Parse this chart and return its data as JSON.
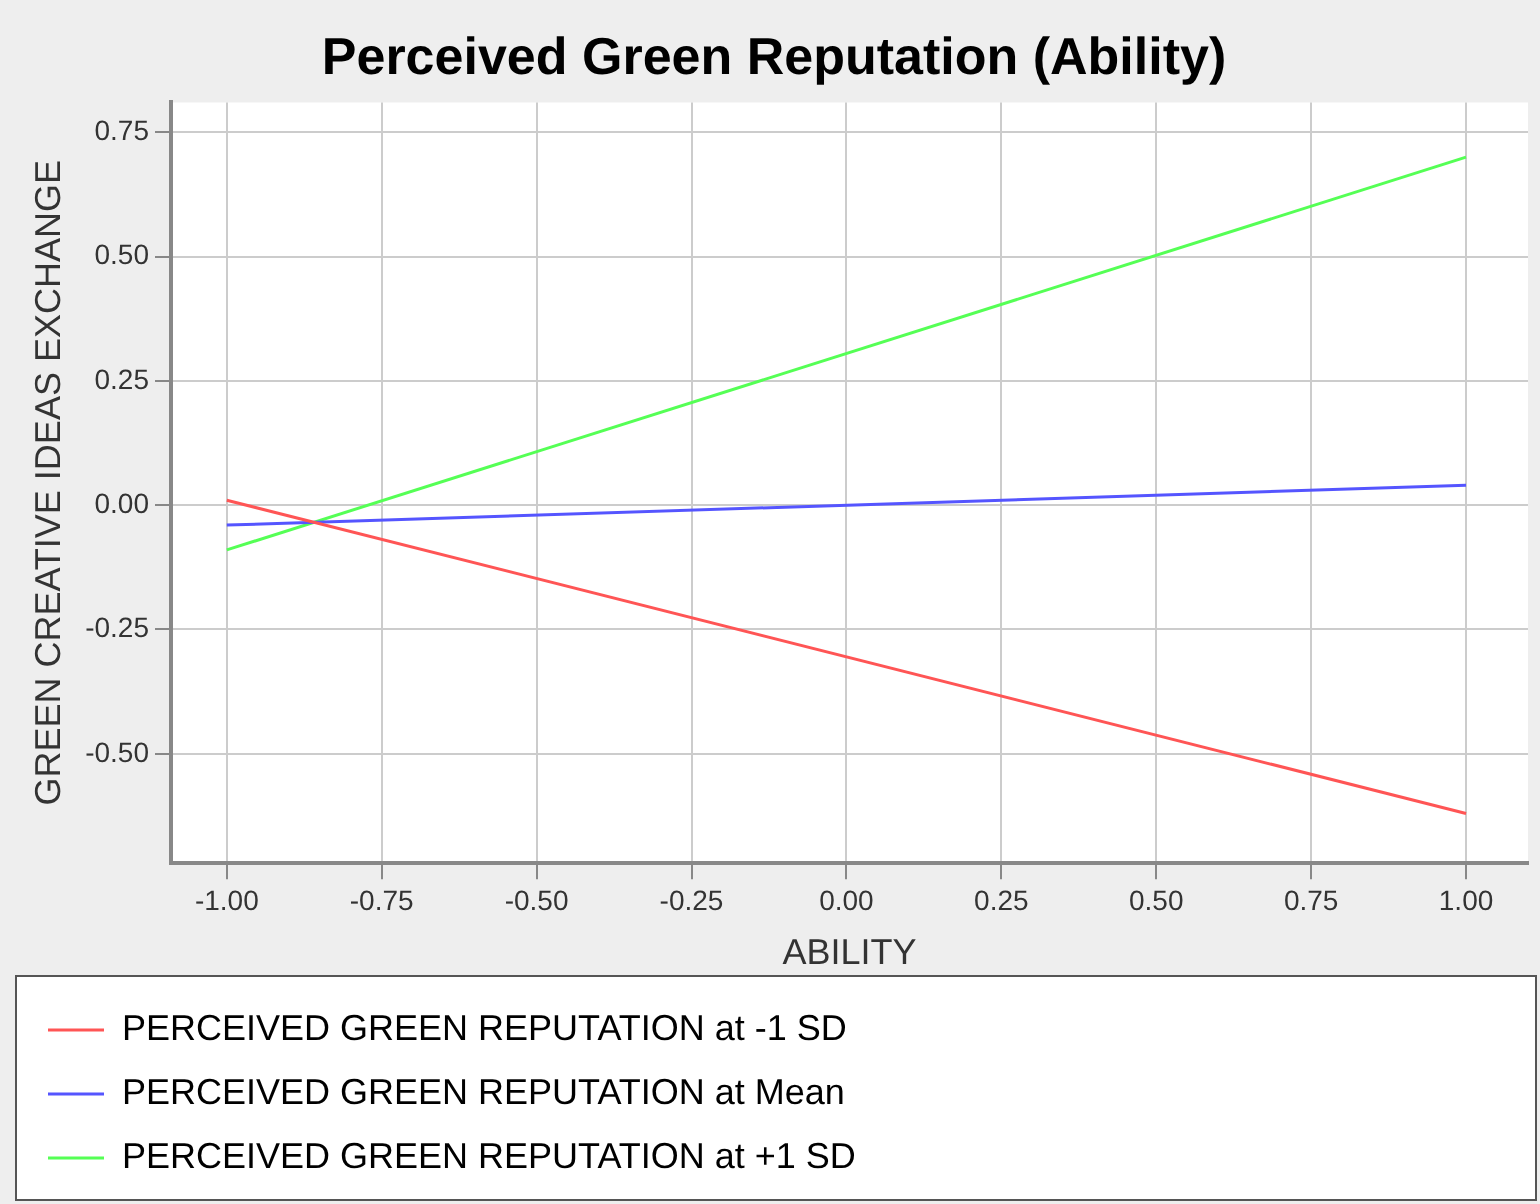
{
  "chart_data": {
    "type": "line",
    "title": "Perceived Green Reputation (Ability)",
    "xlabel": "ABILITY",
    "ylabel": "GREEN CREATIVE IDEAS EXCHANGE",
    "x": [
      -1,
      1
    ],
    "series": [
      {
        "name": "PERCEIVED GREEN REPUTATION at -1 SD",
        "color": "#ff5555",
        "values": [
          0.01,
          -0.62
        ]
      },
      {
        "name": "PERCEIVED GREEN REPUTATION at Mean",
        "color": "#5555ff",
        "values": [
          -0.04,
          0.04
        ]
      },
      {
        "name": "PERCEIVED GREEN REPUTATION at +1 SD",
        "color": "#55ff55",
        "values": [
          -0.09,
          0.7
        ]
      }
    ],
    "xlim": [
      -1.09,
      1.1
    ],
    "xticks": [
      {
        "value": -1,
        "label": "-1.00"
      },
      {
        "value": -0.75,
        "label": "-0.75"
      },
      {
        "value": -0.5,
        "label": "-0.50"
      },
      {
        "value": -0.25,
        "label": "-0.25"
      },
      {
        "value": 0,
        "label": "0.00"
      },
      {
        "value": 0.25,
        "label": "0.25"
      },
      {
        "value": 0.5,
        "label": "0.50"
      },
      {
        "value": 0.75,
        "label": "0.75"
      },
      {
        "value": 1,
        "label": "1.00"
      }
    ],
    "ylim": [
      -0.72,
      0.81
    ],
    "yticks": [
      {
        "value": -0.5,
        "label": "-0.50"
      },
      {
        "value": -0.25,
        "label": "-0.25"
      },
      {
        "value": 0,
        "label": "0.00"
      },
      {
        "value": 0.25,
        "label": "0.25"
      },
      {
        "value": 0.5,
        "label": "0.50"
      },
      {
        "value": 0.75,
        "label": "0.75"
      }
    ],
    "grid": true,
    "legend": "bottom",
    "marker": "none",
    "line_style": "solid"
  }
}
